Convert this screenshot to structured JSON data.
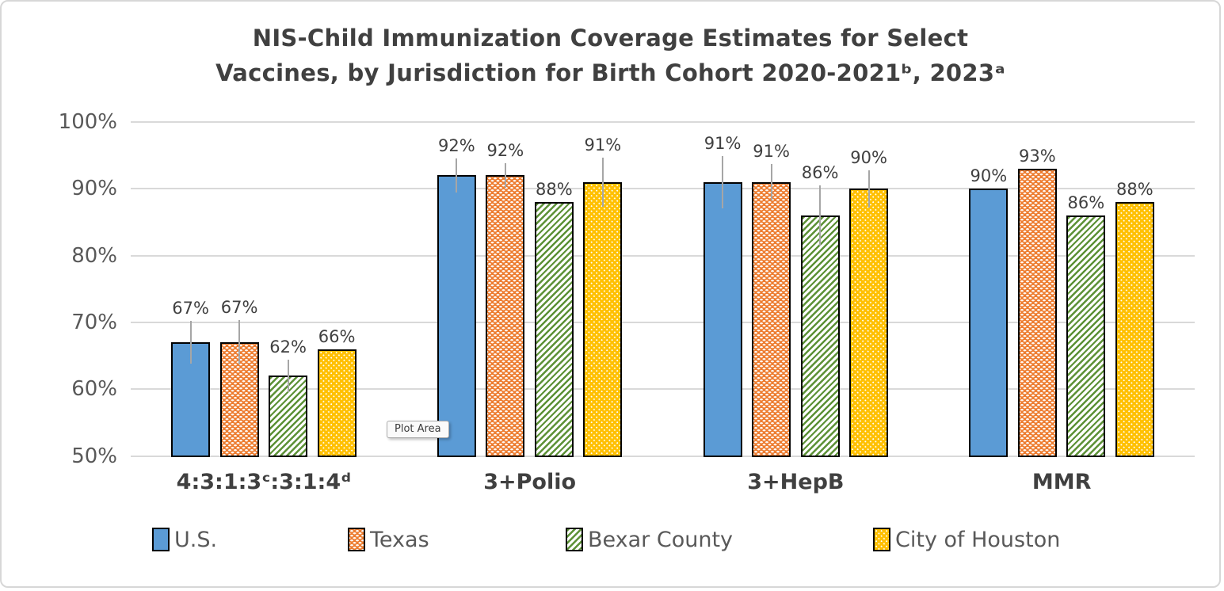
{
  "chart_data": {
    "type": "bar",
    "title": "NIS-Child Immunization Coverage Estimates for Select Vaccines, by Jurisdiction for Birth Cohort 2020-2021ᵇ, 2023ᵃ",
    "title_lines": [
      "NIS-Child Immunization Coverage Estimates for Select",
      "Vaccines, by Jurisdiction for Birth Cohort 2020-2021ᵇ, 2023ᵃ"
    ],
    "categories": [
      "4:3:1:3ᶜ:3:1:4ᵈ",
      "3+Polio",
      "3+HepB",
      "MMR"
    ],
    "series": [
      {
        "name": "U.S.",
        "color": "#5B9BD5",
        "pattern": "solid",
        "values": [
          67,
          92,
          91,
          90
        ],
        "labels": [
          "67%",
          "92%",
          "91%",
          "90%"
        ],
        "error_up": [
          3.2,
          2.6,
          3.9,
          0
        ]
      },
      {
        "name": "Texas",
        "color": "#ED7D31",
        "pattern": "white-dashes",
        "values": [
          67,
          92,
          91,
          93
        ],
        "labels": [
          "67%",
          "92%",
          "91%",
          "93%"
        ],
        "error_up": [
          3.3,
          1.8,
          2.7,
          0
        ]
      },
      {
        "name": "Bexar County",
        "color": "#5C9136",
        "pattern": "diagonal-stripes",
        "values": [
          62,
          88,
          86,
          86
        ],
        "labels": [
          "62%",
          "88%",
          "86%",
          "86%"
        ],
        "error_up": [
          2.4,
          0,
          4.5,
          0
        ]
      },
      {
        "name": "City of Houston",
        "color": "#FFC000",
        "pattern": "white-dots",
        "values": [
          66,
          91,
          90,
          88
        ],
        "labels": [
          "66%",
          "91%",
          "90%",
          "88%"
        ],
        "error_up": [
          0,
          3.7,
          2.8,
          0
        ]
      }
    ],
    "ylim": [
      50,
      100
    ],
    "yticks": [
      {
        "label": "100%",
        "value": 100
      },
      {
        "label": "90%",
        "value": 90
      },
      {
        "label": "80%",
        "value": 80
      },
      {
        "label": "70%",
        "value": 70
      },
      {
        "label": "60%",
        "value": 60
      },
      {
        "label": "50%",
        "value": 50
      }
    ],
    "grid": true,
    "legend_position": "bottom",
    "colors": {
      "gridline": "#D9D9D9",
      "bar_border": "#000000",
      "error_bar": "#A6A6A6",
      "title_text": "#404040",
      "axis_text": "#595959"
    },
    "plot_area_tooltip": "Plot Area"
  }
}
